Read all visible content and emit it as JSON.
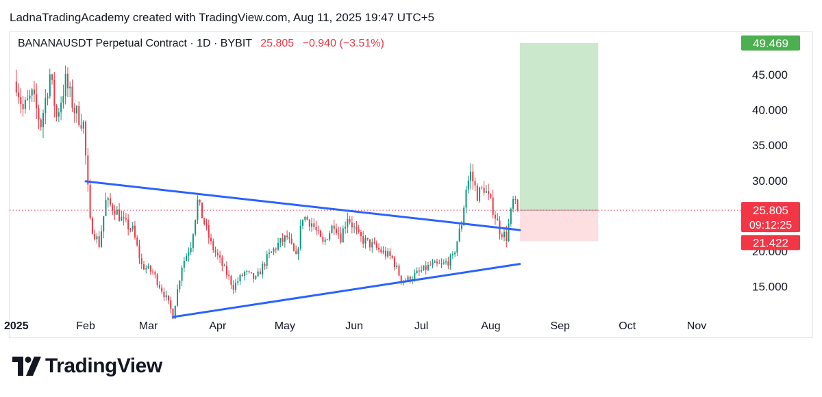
{
  "attribution": "LadnaTradingAcademy created with TradingView.com, Aug 11, 2025 19:47 UTC+5",
  "legend": {
    "symbol": "BANANAUSDT Perpetual Contract · 1D · BYBIT",
    "price": "25.805",
    "change": "−0.940 (−3.51%)"
  },
  "brand": {
    "name": "TradingView",
    "icon": "tradingview-logo-icon"
  },
  "colors": {
    "up": "#089981",
    "down": "#f23645",
    "trendline": "#2962ff",
    "target_zone": "#c8e6c9",
    "stop_zone": "#fddde0",
    "target_label": "#4caf50"
  },
  "chart_data": {
    "type": "candlestick",
    "title": "BANANAUSDT Perpetual Contract · 1D · BYBIT",
    "x_axis": {
      "range": [
        "2024-12-29",
        "2025-11-16"
      ],
      "ticks": [
        {
          "date": "2025-01-01",
          "label": "2025",
          "bold": true
        },
        {
          "date": "2025-02-01",
          "label": "Feb"
        },
        {
          "date": "2025-03-01",
          "label": "Mar"
        },
        {
          "date": "2025-04-01",
          "label": "Apr"
        },
        {
          "date": "2025-05-01",
          "label": "May"
        },
        {
          "date": "2025-06-01",
          "label": "Jun"
        },
        {
          "date": "2025-07-01",
          "label": "Jul"
        },
        {
          "date": "2025-08-01",
          "label": "Aug"
        },
        {
          "date": "2025-09-01",
          "label": "Sep"
        },
        {
          "date": "2025-10-01",
          "label": "Oct"
        },
        {
          "date": "2025-11-01",
          "label": "Nov"
        }
      ]
    },
    "y_axis": {
      "range": [
        11,
        51
      ],
      "ticks": [
        "15.000",
        "20.000",
        "25.000",
        "30.000",
        "35.000",
        "40.000",
        "45.000"
      ]
    },
    "price_labels": [
      {
        "value": 49.469,
        "label": "49.469",
        "kind": "target"
      },
      {
        "value": 25.805,
        "label": "25.805",
        "kind": "current"
      },
      {
        "value": 21.422,
        "label": "21.422",
        "kind": "stop"
      }
    ],
    "countdown": "09:12:25",
    "current_price": 25.805,
    "trendlines": [
      {
        "name": "",
        "points": [
          [
            "2025-02-01",
            29.9
          ],
          [
            "2025-08-14",
            23.0
          ]
        ]
      },
      {
        "name": "",
        "points": [
          [
            "2025-03-12",
            10.7
          ],
          [
            "2025-08-14",
            18.2
          ]
        ]
      }
    ],
    "position": {
      "start": "2025-08-14",
      "end": "2025-09-18",
      "entry": 25.805,
      "target": 49.469,
      "stop": 21.422
    },
    "price_path": [
      [
        "2025-01-01",
        44
      ],
      [
        "2025-01-04",
        40
      ],
      [
        "2025-01-08",
        42
      ],
      [
        "2025-01-12",
        38
      ],
      [
        "2025-01-16",
        45
      ],
      [
        "2025-01-19",
        39
      ],
      [
        "2025-01-23",
        44
      ],
      [
        "2025-01-27",
        40
      ],
      [
        "2025-01-31",
        38
      ],
      [
        "2025-02-03",
        24
      ],
      [
        "2025-02-07",
        21
      ],
      [
        "2025-02-10",
        27
      ],
      [
        "2025-02-14",
        26
      ],
      [
        "2025-02-18",
        24
      ],
      [
        "2025-02-22",
        23
      ],
      [
        "2025-02-26",
        18
      ],
      [
        "2025-03-03",
        17
      ],
      [
        "2025-03-08",
        14
      ],
      [
        "2025-03-12",
        11
      ],
      [
        "2025-03-16",
        18
      ],
      [
        "2025-03-20",
        21
      ],
      [
        "2025-03-23",
        27
      ],
      [
        "2025-03-26",
        24
      ],
      [
        "2025-03-29",
        21
      ],
      [
        "2025-04-03",
        18
      ],
      [
        "2025-04-08",
        15
      ],
      [
        "2025-04-13",
        17
      ],
      [
        "2025-04-18",
        16
      ],
      [
        "2025-04-23",
        19
      ],
      [
        "2025-04-28",
        21
      ],
      [
        "2025-05-02",
        22
      ],
      [
        "2025-05-06",
        19
      ],
      [
        "2025-05-09",
        25
      ],
      [
        "2025-05-13",
        24
      ],
      [
        "2025-05-18",
        21
      ],
      [
        "2025-05-23",
        24
      ],
      [
        "2025-05-26",
        22
      ],
      [
        "2025-05-29",
        25
      ],
      [
        "2025-06-03",
        22
      ],
      [
        "2025-06-08",
        21
      ],
      [
        "2025-06-13",
        20
      ],
      [
        "2025-06-18",
        19
      ],
      [
        "2025-06-22",
        16
      ],
      [
        "2025-06-25",
        16
      ],
      [
        "2025-06-30",
        17
      ],
      [
        "2025-07-05",
        18
      ],
      [
        "2025-07-10",
        18
      ],
      [
        "2025-07-15",
        19
      ],
      [
        "2025-07-19",
        24
      ],
      [
        "2025-07-21",
        29
      ],
      [
        "2025-07-23",
        31
      ],
      [
        "2025-07-26",
        28
      ],
      [
        "2025-07-29",
        29
      ],
      [
        "2025-08-02",
        26
      ],
      [
        "2025-08-05",
        23
      ],
      [
        "2025-08-08",
        22
      ],
      [
        "2025-08-11",
        27
      ],
      [
        "2025-08-13",
        25.805
      ]
    ]
  }
}
